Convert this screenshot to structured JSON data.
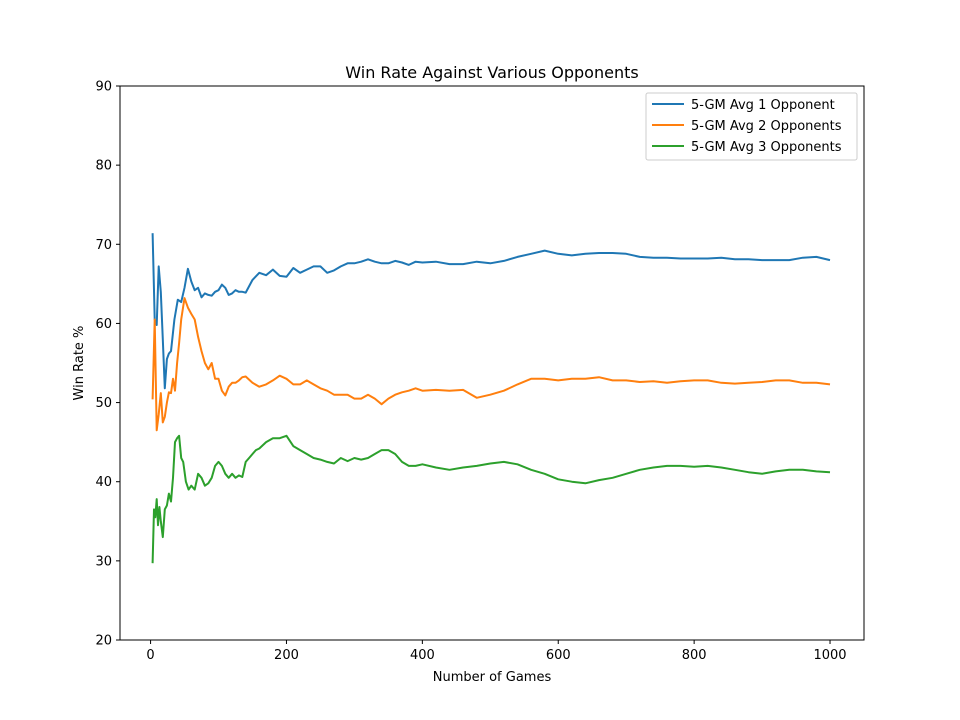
{
  "chart_data": {
    "type": "line",
    "title": "Win Rate Against Various Opponents",
    "xlabel": "Number of Games",
    "ylabel": "Win Rate %",
    "xlim": [
      -45,
      1050
    ],
    "ylim": [
      20,
      90
    ],
    "xticks": [
      0,
      200,
      400,
      600,
      800,
      1000
    ],
    "yticks": [
      20,
      30,
      40,
      50,
      60,
      70,
      80,
      90
    ],
    "grid": false,
    "legend_position": "top-right",
    "series": [
      {
        "name": "5-GM Avg 1 Opponent",
        "color": "#1f77b4",
        "x": [
          3,
          6,
          9,
          12,
          15,
          18,
          21,
          24,
          27,
          30,
          35,
          40,
          45,
          50,
          55,
          60,
          65,
          70,
          75,
          80,
          85,
          90,
          95,
          100,
          105,
          110,
          115,
          120,
          125,
          130,
          135,
          140,
          150,
          160,
          170,
          180,
          190,
          200,
          210,
          220,
          230,
          240,
          250,
          260,
          270,
          280,
          290,
          300,
          310,
          320,
          330,
          340,
          350,
          360,
          370,
          380,
          390,
          400,
          420,
          440,
          460,
          480,
          500,
          520,
          540,
          560,
          580,
          600,
          620,
          640,
          660,
          680,
          700,
          720,
          740,
          760,
          780,
          800,
          820,
          840,
          860,
          880,
          900,
          920,
          940,
          960,
          980,
          1000
        ],
        "y": [
          71.4,
          60.5,
          59.8,
          67.2,
          64.0,
          58.0,
          51.8,
          55.5,
          56.2,
          56.5,
          60.5,
          63.0,
          62.7,
          64.5,
          66.9,
          65.3,
          64.2,
          64.5,
          63.3,
          63.8,
          63.6,
          63.5,
          64.0,
          64.2,
          64.9,
          64.5,
          63.6,
          63.8,
          64.2,
          64.0,
          64.0,
          63.9,
          65.5,
          66.4,
          66.1,
          66.8,
          66.0,
          65.9,
          67.0,
          66.4,
          66.8,
          67.2,
          67.2,
          66.4,
          66.7,
          67.2,
          67.6,
          67.6,
          67.8,
          68.1,
          67.8,
          67.6,
          67.6,
          67.9,
          67.7,
          67.4,
          67.8,
          67.7,
          67.8,
          67.5,
          67.5,
          67.8,
          67.6,
          67.9,
          68.4,
          68.8,
          69.2,
          68.8,
          68.6,
          68.8,
          68.9,
          68.9,
          68.8,
          68.4,
          68.3,
          68.3,
          68.2,
          68.2,
          68.2,
          68.3,
          68.1,
          68.1,
          68.0,
          68.0,
          68.0,
          68.3,
          68.4,
          68.0
        ]
      },
      {
        "name": "5-GM Avg 2 Opponents",
        "color": "#ff7f0e",
        "x": [
          3,
          6,
          9,
          12,
          15,
          18,
          21,
          24,
          27,
          30,
          33,
          36,
          39,
          42,
          45,
          50,
          55,
          60,
          65,
          70,
          75,
          80,
          85,
          90,
          95,
          100,
          105,
          110,
          115,
          120,
          125,
          130,
          135,
          140,
          150,
          160,
          170,
          180,
          190,
          200,
          210,
          220,
          230,
          240,
          250,
          260,
          270,
          280,
          290,
          300,
          310,
          320,
          330,
          340,
          350,
          360,
          370,
          380,
          390,
          400,
          420,
          440,
          460,
          480,
          500,
          520,
          540,
          560,
          580,
          600,
          620,
          640,
          660,
          680,
          700,
          720,
          740,
          760,
          780,
          800,
          820,
          840,
          860,
          880,
          900,
          920,
          940,
          960,
          980,
          1000
        ],
        "y": [
          50.4,
          60.5,
          46.5,
          48.5,
          51.2,
          47.5,
          48.2,
          50.0,
          51.3,
          51.2,
          53.0,
          51.5,
          55.0,
          57.5,
          60.5,
          63.2,
          62.0,
          61.2,
          60.5,
          58.3,
          56.5,
          55.0,
          54.2,
          55.0,
          53.0,
          53.0,
          51.5,
          50.9,
          52.0,
          52.5,
          52.5,
          52.8,
          53.2,
          53.3,
          52.5,
          52.0,
          52.3,
          52.8,
          53.4,
          53.0,
          52.3,
          52.3,
          52.8,
          52.3,
          51.8,
          51.5,
          51.0,
          51.0,
          51.0,
          50.5,
          50.5,
          51.0,
          50.5,
          49.8,
          50.5,
          51.0,
          51.3,
          51.5,
          51.8,
          51.5,
          51.6,
          51.5,
          51.6,
          50.6,
          51.0,
          51.5,
          52.3,
          53.0,
          53.0,
          52.8,
          53.0,
          53.0,
          53.2,
          52.8,
          52.8,
          52.6,
          52.7,
          52.5,
          52.7,
          52.8,
          52.8,
          52.5,
          52.4,
          52.5,
          52.6,
          52.8,
          52.8,
          52.5,
          52.5,
          52.3
        ]
      },
      {
        "name": "5-GM Avg 3 Opponents",
        "color": "#2ca02c",
        "x": [
          3,
          5,
          7,
          9,
          11,
          13,
          15,
          18,
          21,
          24,
          27,
          30,
          33,
          36,
          39,
          42,
          45,
          48,
          52,
          56,
          60,
          65,
          70,
          75,
          80,
          85,
          90,
          95,
          100,
          105,
          110,
          115,
          120,
          125,
          130,
          135,
          140,
          145,
          150,
          155,
          160,
          170,
          180,
          190,
          200,
          210,
          220,
          230,
          240,
          250,
          260,
          270,
          280,
          290,
          300,
          310,
          320,
          330,
          340,
          350,
          360,
          370,
          380,
          390,
          400,
          420,
          440,
          460,
          480,
          500,
          520,
          540,
          560,
          580,
          600,
          620,
          640,
          660,
          680,
          700,
          720,
          740,
          760,
          780,
          800,
          820,
          840,
          860,
          880,
          900,
          920,
          940,
          960,
          980,
          1000
        ],
        "y": [
          29.7,
          36.5,
          35.5,
          37.8,
          34.5,
          36.8,
          35.0,
          33.0,
          36.5,
          37.0,
          38.5,
          37.5,
          40.5,
          45.0,
          45.5,
          45.8,
          43.0,
          42.5,
          40.0,
          39.0,
          39.5,
          39.0,
          41.0,
          40.5,
          39.5,
          39.8,
          40.5,
          42.0,
          42.5,
          42.0,
          41.0,
          40.5,
          41.0,
          40.5,
          40.8,
          40.6,
          42.5,
          43.0,
          43.5,
          44.0,
          44.2,
          45.0,
          45.5,
          45.5,
          45.8,
          44.5,
          44.0,
          43.5,
          43.0,
          42.8,
          42.5,
          42.3,
          43.0,
          42.6,
          43.0,
          42.8,
          43.0,
          43.5,
          44.0,
          44.0,
          43.5,
          42.5,
          42.0,
          42.0,
          42.2,
          41.8,
          41.5,
          41.8,
          42.0,
          42.3,
          42.5,
          42.2,
          41.5,
          41.0,
          40.3,
          40.0,
          39.8,
          40.2,
          40.5,
          41.0,
          41.5,
          41.8,
          42.0,
          42.0,
          41.9,
          42.0,
          41.8,
          41.5,
          41.2,
          41.0,
          41.3,
          41.5,
          41.5,
          41.3,
          41.2
        ]
      }
    ]
  }
}
